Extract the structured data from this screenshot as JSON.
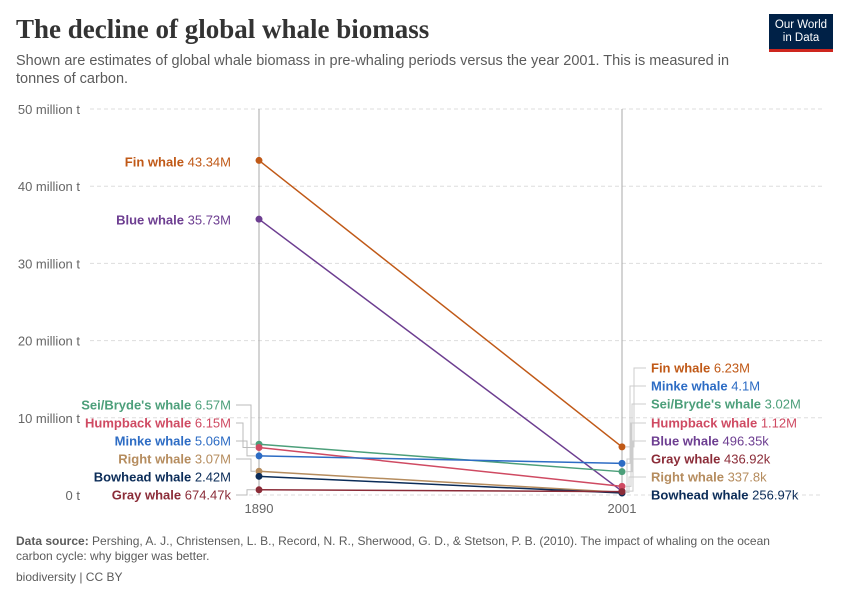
{
  "title": "The decline of global whale biomass",
  "subtitle": "Shown are estimates of global whale biomass in pre-whaling periods versus the year 2001. This is measured in tonnes of carbon.",
  "logo": "Our World in Data",
  "footer": {
    "source_label": "Data source:",
    "source": "Pershing, A. J., Christensen, L. B., Record, N. R., Sherwood, G. D., & Stetson, P. B. (2010). The impact of whaling on the ocean carbon cycle: why bigger was better.",
    "license": "biodiversity | CC BY"
  },
  "chart_data": {
    "type": "line",
    "x": [
      "1890",
      "2001"
    ],
    "ylim": [
      0,
      50000000
    ],
    "yticks": [
      {
        "v": 0,
        "label": "0 t"
      },
      {
        "v": 10000000,
        "label": "10 million t"
      },
      {
        "v": 20000000,
        "label": "20 million t"
      },
      {
        "v": 30000000,
        "label": "30 million t"
      },
      {
        "v": 40000000,
        "label": "40 million t"
      },
      {
        "v": 50000000,
        "label": "50 million t"
      }
    ],
    "grid": true,
    "series": [
      {
        "name": "Fin whale",
        "color": "#c05917",
        "values": [
          43340000,
          6230000
        ],
        "labels": [
          "43.34M",
          "6.23M"
        ]
      },
      {
        "name": "Blue whale",
        "color": "#6d3e91",
        "values": [
          35730000,
          496350
        ],
        "labels": [
          "35.73M",
          "496.35k"
        ]
      },
      {
        "name": "Sei/Bryde's whale",
        "color": "#4c9f7a",
        "values": [
          6570000,
          3020000
        ],
        "labels": [
          "6.57M",
          "3.02M"
        ]
      },
      {
        "name": "Humpback whale",
        "color": "#cf4a62",
        "values": [
          6150000,
          1120000
        ],
        "labels": [
          "6.15M",
          "1.12M"
        ]
      },
      {
        "name": "Minke whale",
        "color": "#2d6cc4",
        "values": [
          5060000,
          4100000
        ],
        "labels": [
          "5.06M",
          "4.1M"
        ]
      },
      {
        "name": "Right whale",
        "color": "#b58c5e",
        "values": [
          3070000,
          337800
        ],
        "labels": [
          "3.07M",
          "337.8k"
        ]
      },
      {
        "name": "Bowhead whale",
        "color": "#0b2c58",
        "values": [
          2420000,
          256970
        ],
        "labels": [
          "2.42M",
          "256.97k"
        ]
      },
      {
        "name": "Gray whale",
        "color": "#8b2c38",
        "values": [
          674470,
          436920
        ],
        "labels": [
          "674.47k",
          "436.92k"
        ]
      }
    ]
  }
}
